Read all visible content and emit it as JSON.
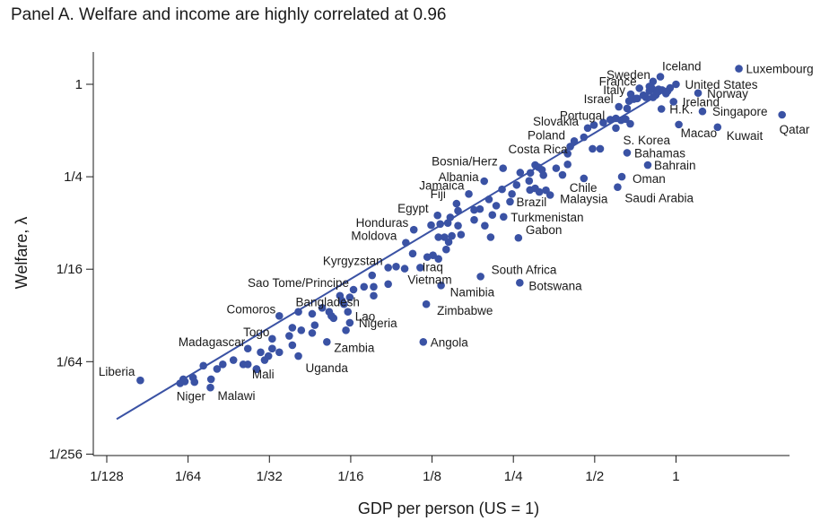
{
  "chart_data": {
    "type": "scatter",
    "title": "Panel A. Welfare and income are highly correlated at 0.96",
    "xlabel": "GDP per person (US = 1)",
    "ylabel": "Welfare, λ",
    "x_scale": "log2",
    "y_scale": "log2",
    "xlim": [
      0.0078125,
      2.9
    ],
    "ylim": [
      0.00390625,
      1.4
    ],
    "x_ticks": [
      {
        "value": 0.0078125,
        "label": "1/128"
      },
      {
        "value": 0.015625,
        "label": "1/64"
      },
      {
        "value": 0.03125,
        "label": "1/32"
      },
      {
        "value": 0.0625,
        "label": "1/16"
      },
      {
        "value": 0.125,
        "label": "1/8"
      },
      {
        "value": 0.25,
        "label": "1/4"
      },
      {
        "value": 0.5,
        "label": "1/2"
      },
      {
        "value": 1,
        "label": "1"
      }
    ],
    "y_ticks": [
      {
        "value": 0.00390625,
        "label": "1/256"
      },
      {
        "value": 0.015625,
        "label": "1/64"
      },
      {
        "value": 0.0625,
        "label": "1/16"
      },
      {
        "value": 0.25,
        "label": "1/4"
      },
      {
        "value": 1,
        "label": "1"
      }
    ],
    "fit_line": {
      "x": [
        0.0085,
        1.0
      ],
      "y": [
        0.0066,
        1.0
      ]
    },
    "point_color": "#3a52a4",
    "line_color": "#3a52a4",
    "labeled_points": [
      {
        "name": "Luxembourg",
        "x": 1.709,
        "y": 1.264
      },
      {
        "name": "Iceland",
        "x": 0.875,
        "y": 1.12
      },
      {
        "name": "Sweden",
        "x": 0.822,
        "y": 1.044
      },
      {
        "name": "United States",
        "x": 1.0,
        "y": 1.0
      },
      {
        "name": "France",
        "x": 0.732,
        "y": 0.942
      },
      {
        "name": "Norway",
        "x": 1.207,
        "y": 0.877
      },
      {
        "name": "Italy",
        "x": 0.68,
        "y": 0.862
      },
      {
        "name": "Ireland",
        "x": 0.979,
        "y": 0.77
      },
      {
        "name": "Israel",
        "x": 0.614,
        "y": 0.714
      },
      {
        "name": "H.K.",
        "x": 0.883,
        "y": 0.691
      },
      {
        "name": "Singapore",
        "x": 1.253,
        "y": 0.666
      },
      {
        "name": "Qatar",
        "x": 2.469,
        "y": 0.633
      },
      {
        "name": "Portugal",
        "x": 0.571,
        "y": 0.589
      },
      {
        "name": "Slovakia",
        "x": 0.471,
        "y": 0.519
      },
      {
        "name": "S. Korea",
        "x": 0.599,
        "y": 0.519
      },
      {
        "name": "Macao",
        "x": 1.024,
        "y": 0.547
      },
      {
        "name": "Kuwait",
        "x": 1.425,
        "y": 0.526
      },
      {
        "name": "Poland",
        "x": 0.42,
        "y": 0.427
      },
      {
        "name": "Bahamas",
        "x": 0.659,
        "y": 0.358
      },
      {
        "name": "Costa Rica",
        "x": 0.301,
        "y": 0.298
      },
      {
        "name": "Bahrain",
        "x": 0.786,
        "y": 0.298
      },
      {
        "name": "Bosnia/Herz",
        "x": 0.229,
        "y": 0.284
      },
      {
        "name": "Oman",
        "x": 0.63,
        "y": 0.25
      },
      {
        "name": "Albania",
        "x": 0.195,
        "y": 0.234
      },
      {
        "name": "Chile",
        "x": 0.456,
        "y": 0.244
      },
      {
        "name": "Saudi Arabia",
        "x": 0.608,
        "y": 0.214
      },
      {
        "name": "Jamaica",
        "x": 0.171,
        "y": 0.193
      },
      {
        "name": "Malaysia",
        "x": 0.342,
        "y": 0.19
      },
      {
        "name": "Fiji",
        "x": 0.154,
        "y": 0.167
      },
      {
        "name": "Brazil",
        "x": 0.243,
        "y": 0.172
      },
      {
        "name": "Egypt",
        "x": 0.131,
        "y": 0.14
      },
      {
        "name": "Turkmenistan",
        "x": 0.23,
        "y": 0.137
      },
      {
        "name": "Honduras",
        "x": 0.107,
        "y": 0.113
      },
      {
        "name": "Gabon",
        "x": 0.261,
        "y": 0.1
      },
      {
        "name": "Moldova",
        "x": 0.1,
        "y": 0.093
      },
      {
        "name": "Kyrgyzstan",
        "x": 0.086,
        "y": 0.064
      },
      {
        "name": "Iraq",
        "x": 0.132,
        "y": 0.073
      },
      {
        "name": "South Africa",
        "x": 0.189,
        "y": 0.056
      },
      {
        "name": "Sao Tome/Principe",
        "x": 0.064,
        "y": 0.046
      },
      {
        "name": "Vietnam",
        "x": 0.113,
        "y": 0.064
      },
      {
        "name": "Botswana",
        "x": 0.264,
        "y": 0.051
      },
      {
        "name": "Namibia",
        "x": 0.135,
        "y": 0.049
      },
      {
        "name": "Bangladesh",
        "x": 0.04,
        "y": 0.033
      },
      {
        "name": "Zimbabwe",
        "x": 0.119,
        "y": 0.037
      },
      {
        "name": "Comoros",
        "x": 0.034,
        "y": 0.031
      },
      {
        "name": "Lao",
        "x": 0.061,
        "y": 0.033
      },
      {
        "name": "Nigeria",
        "x": 0.062,
        "y": 0.028
      },
      {
        "name": "Togo",
        "x": 0.032,
        "y": 0.022
      },
      {
        "name": "Angola",
        "x": 0.116,
        "y": 0.021
      },
      {
        "name": "Madagascar",
        "x": 0.026,
        "y": 0.019
      },
      {
        "name": "Zambia",
        "x": 0.051,
        "y": 0.021
      },
      {
        "name": "Uganda",
        "x": 0.04,
        "y": 0.017
      },
      {
        "name": "Liberia",
        "x": 0.0104,
        "y": 0.0118
      },
      {
        "name": "Mali",
        "x": 0.028,
        "y": 0.0139
      },
      {
        "name": "Niger",
        "x": 0.0146,
        "y": 0.0113
      },
      {
        "name": "Malawi",
        "x": 0.0189,
        "y": 0.0106
      }
    ],
    "other_points": [
      [
        0.797,
        0.968
      ],
      [
        0.814,
        0.942
      ],
      [
        0.862,
        0.928
      ],
      [
        0.889,
        0.918
      ],
      [
        0.797,
        0.905
      ],
      [
        0.846,
        0.881
      ],
      [
        0.932,
        0.905
      ],
      [
        0.918,
        0.87
      ],
      [
        0.842,
        0.851
      ],
      [
        0.822,
        0.822
      ],
      [
        0.774,
        0.822
      ],
      [
        0.713,
        0.808
      ],
      [
        0.67,
        0.778
      ],
      [
        0.719,
        0.808
      ],
      [
        0.757,
        0.849
      ],
      [
        0.697,
        0.8
      ],
      [
        0.951,
        0.947
      ],
      [
        0.659,
        0.696
      ],
      [
        0.599,
        0.6
      ],
      [
        0.626,
        0.583
      ],
      [
        0.651,
        0.593
      ],
      [
        0.677,
        0.553
      ],
      [
        0.538,
        0.563
      ],
      [
        0.497,
        0.543
      ],
      [
        0.456,
        0.452
      ],
      [
        0.406,
        0.393
      ],
      [
        0.397,
        0.353
      ],
      [
        0.491,
        0.38
      ],
      [
        0.524,
        0.38
      ],
      [
        0.397,
        0.301
      ],
      [
        0.38,
        0.257
      ],
      [
        0.36,
        0.284
      ],
      [
        0.289,
        0.265
      ],
      [
        0.319,
        0.277
      ],
      [
        0.265,
        0.266
      ],
      [
        0.31,
        0.288
      ],
      [
        0.286,
        0.235
      ],
      [
        0.323,
        0.256
      ],
      [
        0.257,
        0.221
      ],
      [
        0.301,
        0.21
      ],
      [
        0.227,
        0.207
      ],
      [
        0.247,
        0.193
      ],
      [
        0.288,
        0.205
      ],
      [
        0.312,
        0.199
      ],
      [
        0.33,
        0.204
      ],
      [
        0.203,
        0.178
      ],
      [
        0.216,
        0.162
      ],
      [
        0.188,
        0.154
      ],
      [
        0.179,
        0.152
      ],
      [
        0.156,
        0.15
      ],
      [
        0.146,
        0.136
      ],
      [
        0.143,
        0.125
      ],
      [
        0.156,
        0.12
      ],
      [
        0.179,
        0.131
      ],
      [
        0.196,
        0.12
      ],
      [
        0.134,
        0.123
      ],
      [
        0.124,
        0.121
      ],
      [
        0.16,
        0.105
      ],
      [
        0.209,
        0.141
      ],
      [
        0.206,
        0.101
      ],
      [
        0.132,
        0.101
      ],
      [
        0.139,
        0.101
      ],
      [
        0.148,
        0.103
      ],
      [
        0.144,
        0.094
      ],
      [
        0.141,
        0.084
      ],
      [
        0.126,
        0.077
      ],
      [
        0.12,
        0.075
      ],
      [
        0.106,
        0.079
      ],
      [
        0.099,
        0.063
      ],
      [
        0.092,
        0.065
      ],
      [
        0.075,
        0.057
      ],
      [
        0.086,
        0.05
      ],
      [
        0.076,
        0.042
      ],
      [
        0.076,
        0.048
      ],
      [
        0.07,
        0.048
      ],
      [
        0.062,
        0.041
      ],
      [
        0.058,
        0.039
      ],
      [
        0.057,
        0.042
      ],
      [
        0.059,
        0.037
      ],
      [
        0.049,
        0.035
      ],
      [
        0.052,
        0.033
      ],
      [
        0.053,
        0.031
      ],
      [
        0.06,
        0.025
      ],
      [
        0.054,
        0.03
      ],
      [
        0.045,
        0.032
      ],
      [
        0.046,
        0.027
      ],
      [
        0.045,
        0.024
      ],
      [
        0.041,
        0.025
      ],
      [
        0.037,
        0.023
      ],
      [
        0.038,
        0.026
      ],
      [
        0.038,
        0.02
      ],
      [
        0.032,
        0.019
      ],
      [
        0.032,
        0.019
      ],
      [
        0.031,
        0.017
      ],
      [
        0.034,
        0.018
      ],
      [
        0.029,
        0.018
      ],
      [
        0.03,
        0.016
      ],
      [
        0.025,
        0.015
      ],
      [
        0.026,
        0.015
      ],
      [
        0.028,
        0.014
      ],
      [
        0.023,
        0.016
      ],
      [
        0.021,
        0.015
      ],
      [
        0.02,
        0.014
      ],
      [
        0.019,
        0.012
      ],
      [
        0.0165,
        0.0115
      ],
      [
        0.015,
        0.012
      ],
      [
        0.0152,
        0.0116
      ],
      [
        0.0178,
        0.0147
      ],
      [
        0.0163,
        0.0123
      ]
    ]
  }
}
